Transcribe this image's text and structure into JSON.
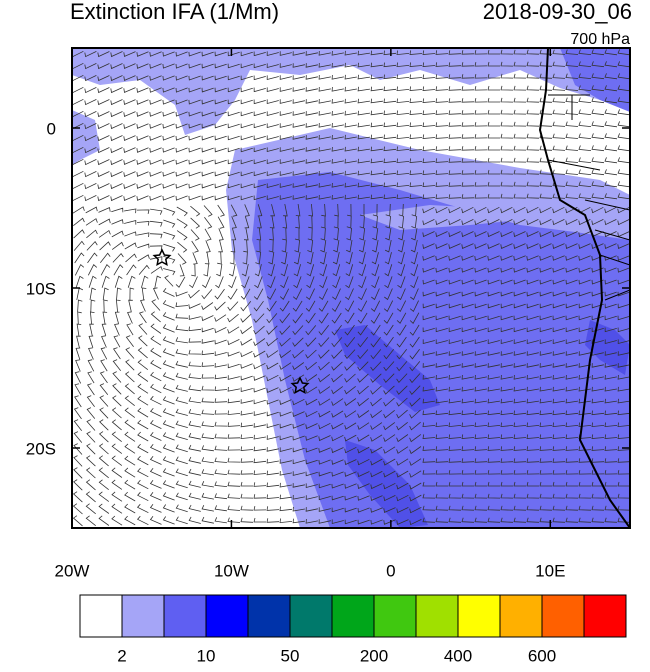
{
  "map": {
    "title": "Extinction IFA (1/Mm)",
    "time": "2018-09-30_06",
    "level": "700 hPa",
    "xlim": [
      -20,
      15
    ],
    "ylim": [
      -25,
      5
    ],
    "xticks": [
      {
        "value": -20,
        "label": "20W"
      },
      {
        "value": -10,
        "label": "10W"
      },
      {
        "value": 0,
        "label": "0"
      },
      {
        "value": 10,
        "label": "10E"
      }
    ],
    "yticks": [
      {
        "value": 0,
        "label": "0"
      },
      {
        "value": -10,
        "label": "10S"
      },
      {
        "value": -20,
        "label": "20S"
      }
    ],
    "colorbar": {
      "colors": [
        "#ffffff",
        "#a5a5f7",
        "#5f5ff2",
        "#0000ff",
        "#0033aa",
        "#00796b",
        "#00a61a",
        "#40c810",
        "#a0e000",
        "#ffff00",
        "#ffb000",
        "#ff6000",
        "#ff0000"
      ],
      "labels": [
        "2",
        "10",
        "50",
        "200",
        "400",
        "600"
      ]
    }
  }
}
